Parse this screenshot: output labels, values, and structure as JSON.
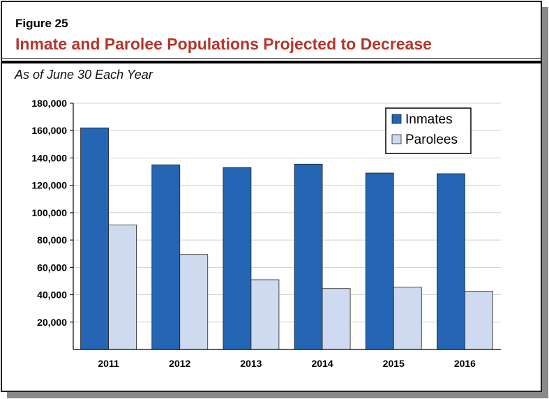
{
  "figure_label": "Figure 25",
  "title": "Inmate and Parolee Populations Projected to Decrease",
  "subtitle": "As of June 30 Each Year",
  "chart_data": {
    "type": "bar",
    "categories": [
      "2011",
      "2012",
      "2013",
      "2014",
      "2015",
      "2016"
    ],
    "series": [
      {
        "name": "Inmates",
        "color": "#2466b3",
        "values": [
          162000,
          135000,
          133000,
          135500,
          129000,
          128500
        ]
      },
      {
        "name": "Parolees",
        "color": "#cfd9ef",
        "values": [
          91000,
          69500,
          51000,
          44500,
          45500,
          42500
        ]
      }
    ],
    "ylim": [
      0,
      180000
    ],
    "yticks": [
      20000,
      40000,
      60000,
      80000,
      100000,
      120000,
      140000,
      160000,
      180000
    ],
    "ytick_labels": [
      "20,000",
      "40,000",
      "60,000",
      "80,000",
      "100,000",
      "120,000",
      "140,000",
      "160,000",
      "180,000"
    ],
    "grid": true,
    "legend": "top-right"
  }
}
